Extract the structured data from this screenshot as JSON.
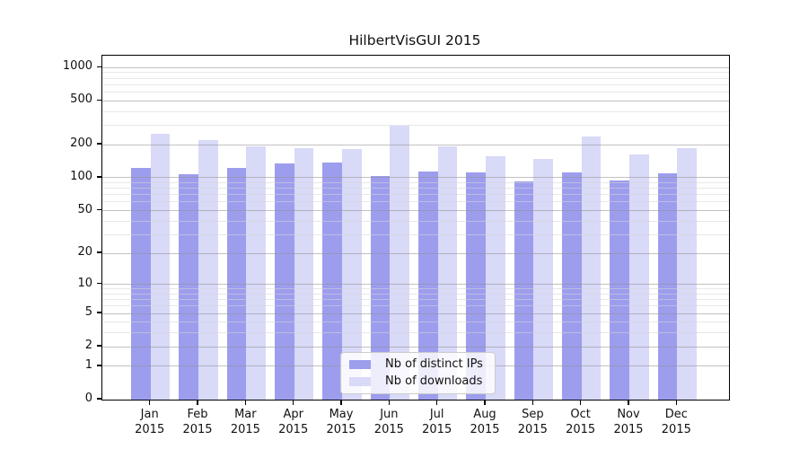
{
  "chart_data": {
    "type": "bar",
    "title": "HilbertVisGUI 2015",
    "categories": [
      "Jan",
      "Feb",
      "Mar",
      "Apr",
      "May",
      "Jun",
      "Jul",
      "Aug",
      "Sep",
      "Oct",
      "Nov",
      "Dec"
    ],
    "category_year": "2015",
    "series": [
      {
        "name": "Nb of distinct IPs",
        "color": "#9d9dee",
        "values": [
          124,
          108,
          122,
          135,
          138,
          103,
          113,
          111,
          92,
          112,
          95,
          110
        ]
      },
      {
        "name": "Nb of downloads",
        "color": "#d9d9f8",
        "values": [
          252,
          221,
          194,
          187,
          183,
          300,
          193,
          157,
          148,
          238,
          164,
          186
        ]
      }
    ],
    "y_axis": {
      "scale": "log1p",
      "ticks": [
        0,
        1,
        2,
        5,
        10,
        20,
        50,
        100,
        200,
        500,
        1000
      ],
      "minor_ticks": [
        3,
        4,
        6,
        7,
        8,
        9,
        30,
        40,
        60,
        70,
        80,
        90,
        300,
        400,
        600,
        700,
        800,
        900
      ],
      "range_top_value": 1280
    },
    "grid": true,
    "legend_position": "lower center inside plot",
    "colors": {
      "axis": "#000000",
      "grid_major": "#8f8f8f",
      "grid_minor": "#d6d6d6",
      "background": "#ffffff"
    }
  }
}
